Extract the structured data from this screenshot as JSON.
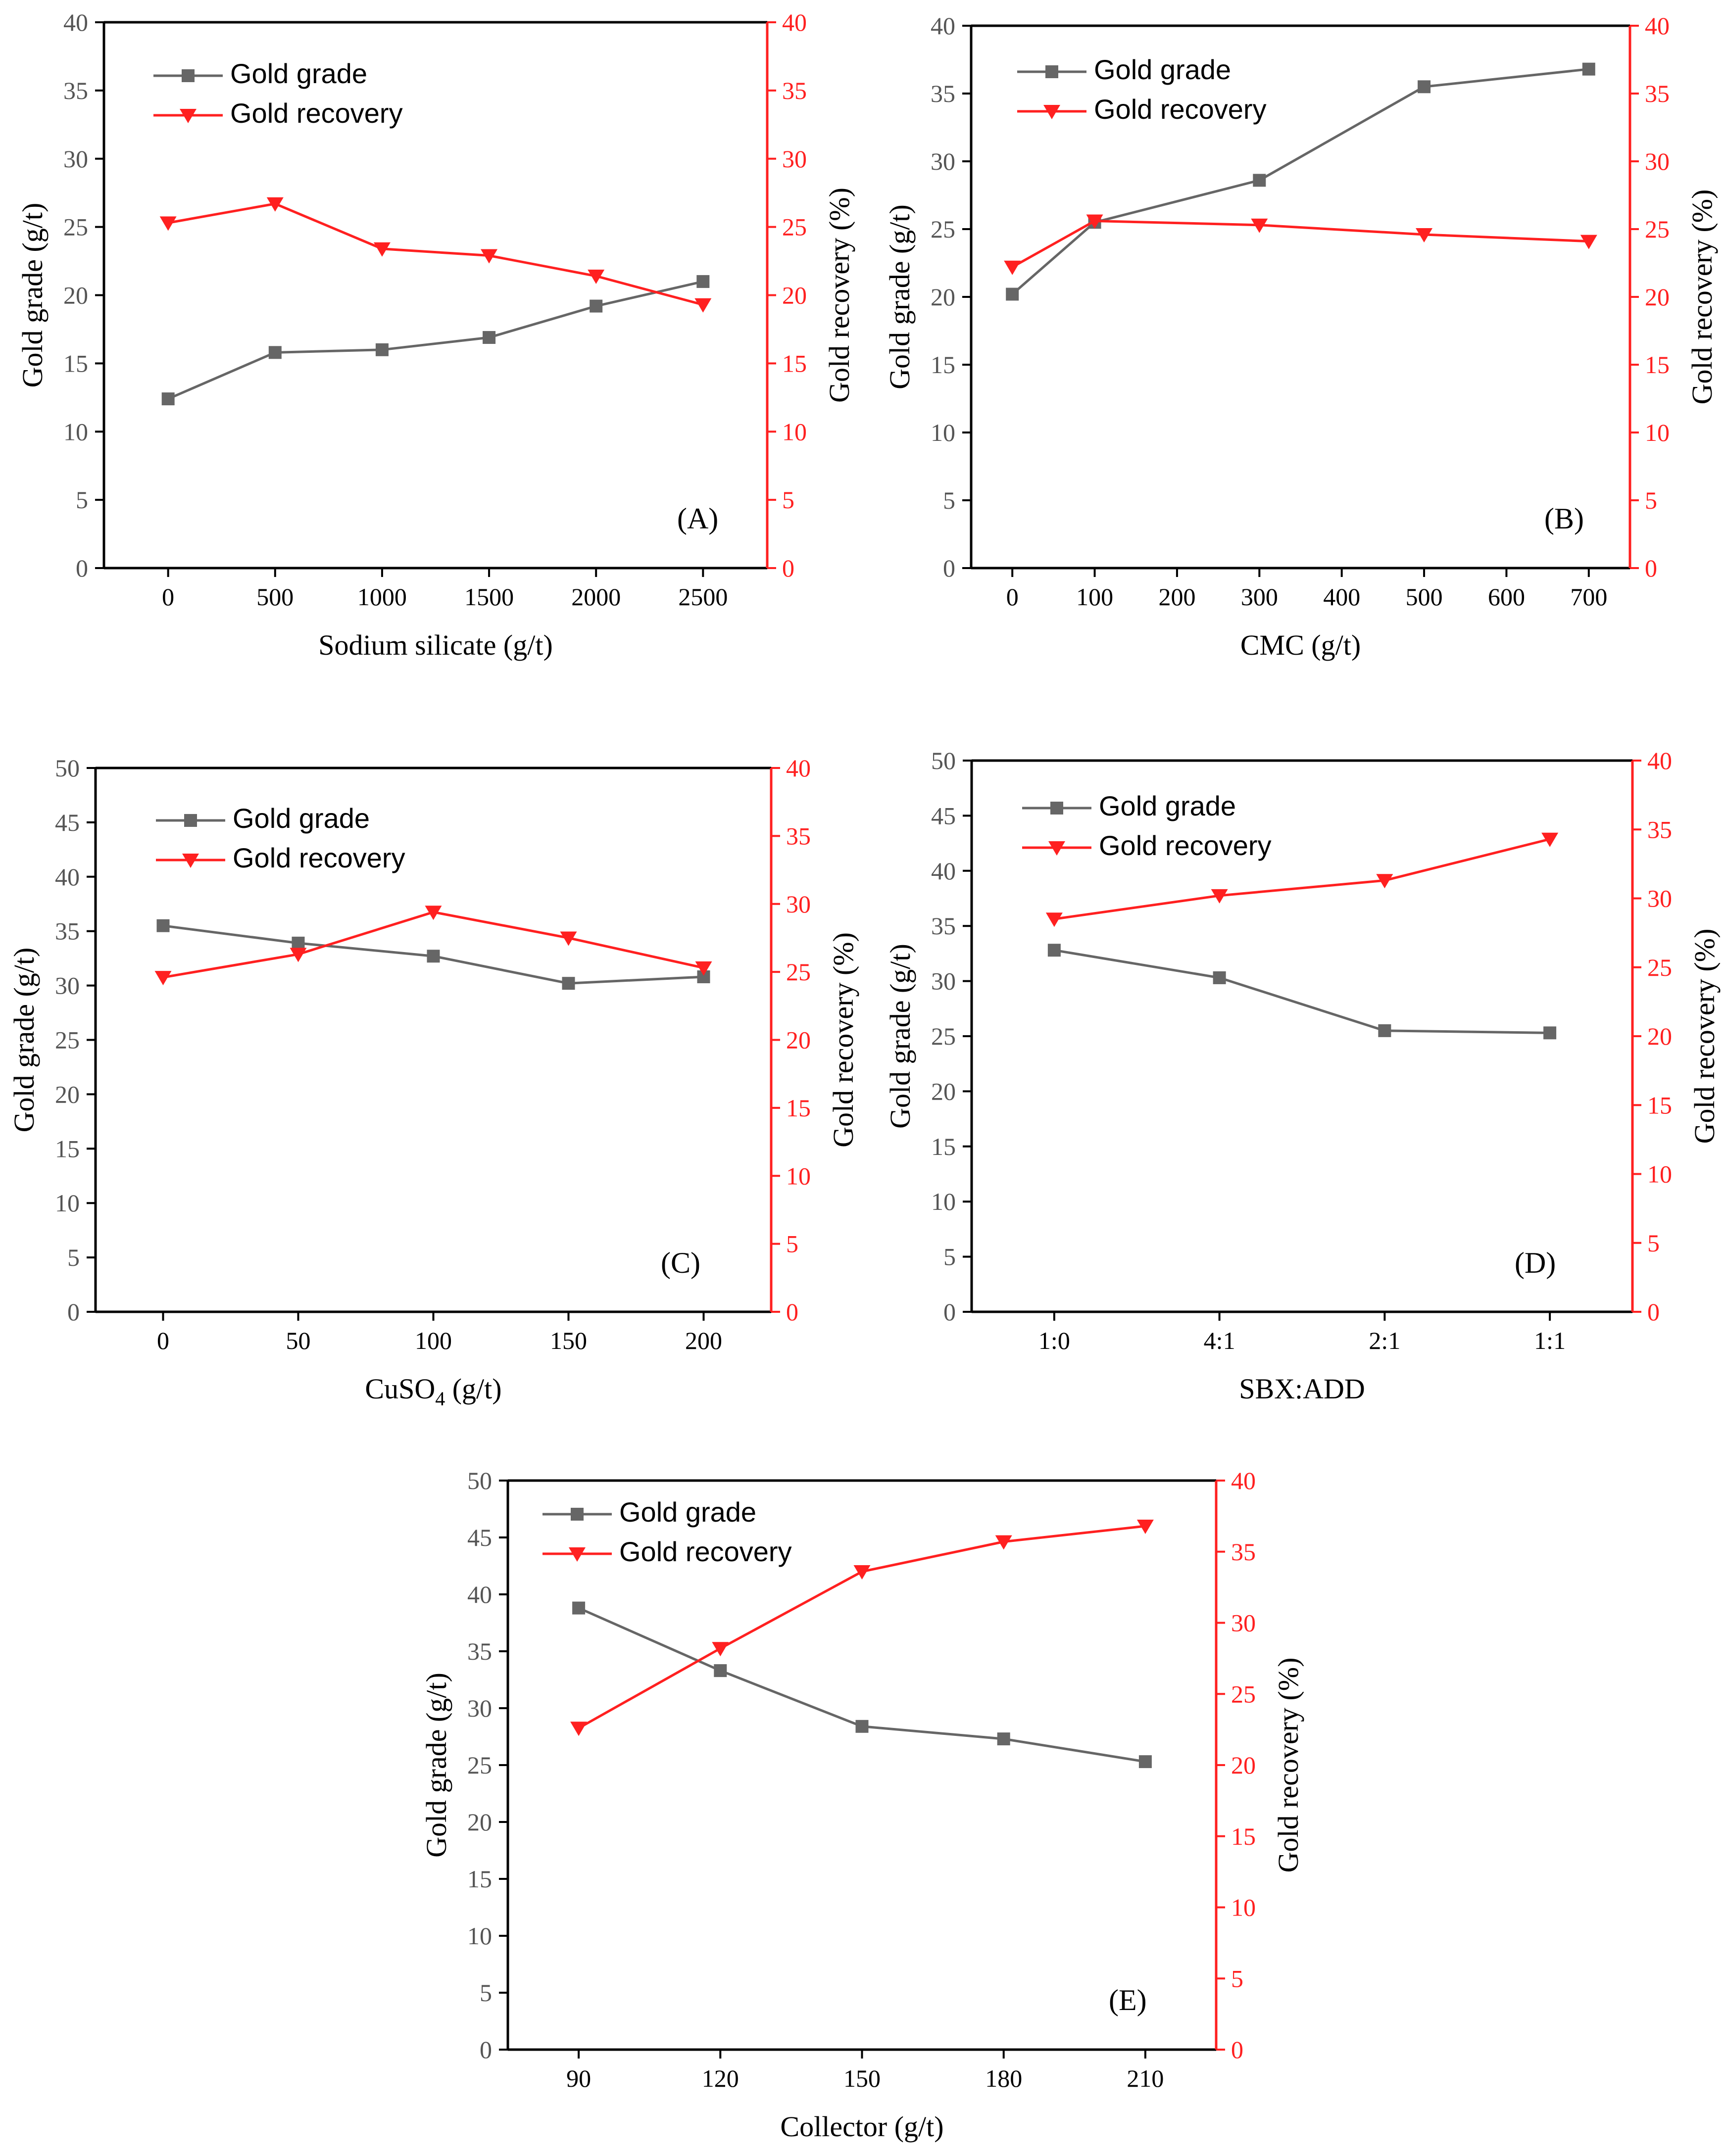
{
  "legend": {
    "grade": "Gold grade",
    "recovery": "Gold recovery"
  },
  "colors": {
    "grade": "#666666",
    "recovery": "#ff2020",
    "axis": "#000000"
  },
  "chart_data": [
    {
      "id": "A",
      "type": "line",
      "panel_label": "(A)",
      "xlabel": "Sodium silicate (g/t)",
      "ylabel_left": "Gold grade (g/t)",
      "ylabel_right": "Gold recovery (%)",
      "x": [
        0,
        500,
        1000,
        1500,
        2000,
        2500
      ],
      "x_ticks": [
        0,
        500,
        1000,
        1500,
        2000,
        2500
      ],
      "x_tick_labels": [
        "0",
        "500",
        "1000",
        "1500",
        "2000",
        "2500"
      ],
      "xlim": [
        -300,
        2800
      ],
      "ylim_left": [
        0,
        40
      ],
      "yticks_left": [
        0,
        5,
        10,
        15,
        20,
        25,
        30,
        35,
        40
      ],
      "ylim_right": [
        0,
        40
      ],
      "yticks_right": [
        0,
        5,
        10,
        15,
        20,
        25,
        30,
        35,
        40
      ],
      "series": [
        {
          "name": "Gold grade",
          "axis": "left",
          "values": [
            12.4,
            15.8,
            16.0,
            16.9,
            19.2,
            21.0
          ]
        },
        {
          "name": "Gold recovery",
          "axis": "right",
          "values": [
            25.3,
            26.7,
            23.4,
            22.9,
            21.4,
            19.3
          ]
        }
      ]
    },
    {
      "id": "B",
      "type": "line",
      "panel_label": "(B)",
      "xlabel": "CMC (g/t)",
      "ylabel_left": "Gold grade (g/t)",
      "ylabel_right": "Gold recovery (%)",
      "x": [
        0,
        100,
        300,
        500,
        700
      ],
      "x_ticks": [
        0,
        100,
        200,
        300,
        400,
        500,
        600,
        700
      ],
      "x_tick_labels": [
        "0",
        "100",
        "200",
        "300",
        "400",
        "500",
        "600",
        "700"
      ],
      "xlim": [
        -50,
        750
      ],
      "ylim_left": [
        0,
        40
      ],
      "yticks_left": [
        0,
        5,
        10,
        15,
        20,
        25,
        30,
        35,
        40
      ],
      "ylim_right": [
        0,
        40
      ],
      "yticks_right": [
        0,
        5,
        10,
        15,
        20,
        25,
        30,
        35,
        40
      ],
      "series": [
        {
          "name": "Gold grade",
          "axis": "left",
          "values": [
            20.2,
            25.5,
            28.6,
            35.5,
            36.8
          ]
        },
        {
          "name": "Gold recovery",
          "axis": "right",
          "values": [
            22.2,
            25.6,
            25.3,
            24.6,
            24.1
          ]
        }
      ]
    },
    {
      "id": "C",
      "type": "line",
      "panel_label": "(C)",
      "xlabel_main": "CuSO",
      "xlabel_sub": "4",
      "xlabel_tail": " (g/t)",
      "ylabel_left": "Gold grade (g/t)",
      "ylabel_right": "Gold recovery (%)",
      "x": [
        0,
        50,
        100,
        150,
        200
      ],
      "x_ticks": [
        0,
        50,
        100,
        150,
        200
      ],
      "x_tick_labels": [
        "0",
        "50",
        "100",
        "150",
        "200"
      ],
      "xlim": [
        -25,
        225
      ],
      "ylim_left": [
        0,
        50
      ],
      "yticks_left": [
        0,
        5,
        10,
        15,
        20,
        25,
        30,
        35,
        40,
        45,
        50
      ],
      "ylim_right": [
        0,
        40
      ],
      "yticks_right": [
        0,
        5,
        10,
        15,
        20,
        25,
        30,
        35,
        40
      ],
      "series": [
        {
          "name": "Gold grade",
          "axis": "left",
          "values": [
            35.5,
            33.9,
            32.7,
            30.2,
            30.8
          ]
        },
        {
          "name": "Gold recovery",
          "axis": "right",
          "values": [
            24.6,
            26.3,
            29.4,
            27.5,
            25.3
          ]
        }
      ]
    },
    {
      "id": "D",
      "type": "line",
      "panel_label": "(D)",
      "xlabel": "SBX:ADD",
      "ylabel_left": "Gold grade (g/t)",
      "ylabel_right": "Gold recovery (%)",
      "x": [
        0,
        1,
        2,
        3
      ],
      "x_ticks": [
        0,
        1,
        2,
        3
      ],
      "x_tick_labels": [
        "1:0",
        "4:1",
        "2:1",
        "1:1"
      ],
      "xlim": [
        -0.5,
        3.5
      ],
      "ylim_left": [
        0,
        50
      ],
      "yticks_left": [
        0,
        5,
        10,
        15,
        20,
        25,
        30,
        35,
        40,
        45,
        50
      ],
      "ylim_right": [
        0,
        40
      ],
      "yticks_right": [
        0,
        5,
        10,
        15,
        20,
        25,
        30,
        35,
        40
      ],
      "series": [
        {
          "name": "Gold grade",
          "axis": "left",
          "values": [
            32.8,
            30.3,
            25.5,
            25.3
          ]
        },
        {
          "name": "Gold recovery",
          "axis": "right",
          "values": [
            28.5,
            30.2,
            31.3,
            34.3
          ]
        }
      ]
    },
    {
      "id": "E",
      "type": "line",
      "panel_label": "(E)",
      "xlabel": "Collector (g/t)",
      "ylabel_left": "Gold grade (g/t)",
      "ylabel_right": "Gold recovery (%)",
      "x": [
        90,
        120,
        150,
        180,
        210
      ],
      "x_ticks": [
        90,
        120,
        150,
        180,
        210
      ],
      "x_tick_labels": [
        "90",
        "120",
        "150",
        "180",
        "210"
      ],
      "xlim": [
        75,
        225
      ],
      "ylim_left": [
        0,
        50
      ],
      "yticks_left": [
        0,
        5,
        10,
        15,
        20,
        25,
        30,
        35,
        40,
        45,
        50
      ],
      "ylim_right": [
        0,
        40
      ],
      "yticks_right": [
        0,
        5,
        10,
        15,
        20,
        25,
        30,
        35,
        40
      ],
      "series": [
        {
          "name": "Gold grade",
          "axis": "left",
          "values": [
            38.8,
            33.3,
            28.4,
            27.3,
            25.3
          ]
        },
        {
          "name": "Gold recovery",
          "axis": "right",
          "values": [
            22.6,
            28.2,
            33.6,
            35.7,
            36.8
          ]
        }
      ]
    }
  ]
}
